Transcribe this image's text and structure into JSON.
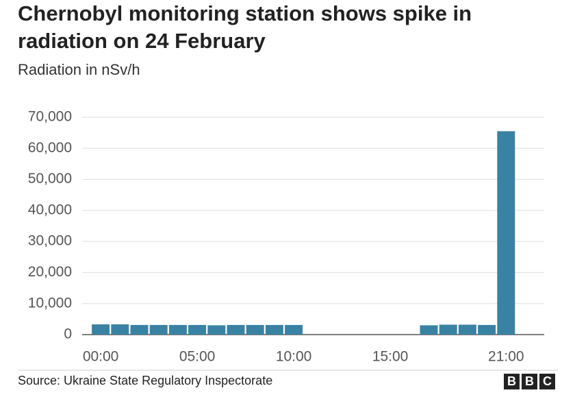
{
  "chart_data": {
    "type": "bar",
    "title": "Chernobyl monitoring station shows spike in radiation on 24 February",
    "subtitle": "Radiation in nSv/h",
    "categories": [
      "00:00",
      null,
      null,
      null,
      null,
      "05:00",
      null,
      null,
      null,
      null,
      "10:00",
      null,
      null,
      null,
      null,
      "15:00",
      null,
      null,
      null,
      null,
      null,
      "21:00"
    ],
    "values": [
      3300,
      3300,
      3100,
      3100,
      3100,
      3100,
      3000,
      3100,
      3100,
      3100,
      3100,
      null,
      null,
      null,
      null,
      null,
      null,
      3000,
      3200,
      3200,
      3100,
      65500
    ],
    "color": "#3a82a3",
    "ylim": [
      0,
      70000
    ],
    "yticks": [
      {
        "value": 0,
        "label": "0"
      },
      {
        "value": 10000,
        "label": "10,000"
      },
      {
        "value": 20000,
        "label": "20,000"
      },
      {
        "value": 30000,
        "label": "30,000"
      },
      {
        "value": 40000,
        "label": "40,000"
      },
      {
        "value": 50000,
        "label": "50,000"
      },
      {
        "value": 60000,
        "label": "60,000"
      },
      {
        "value": 70000,
        "label": "70,000"
      }
    ],
    "grid": true,
    "source": "Source: Ukraine State Regulatory Inspectorate",
    "logo_letters": [
      "B",
      "B",
      "C"
    ]
  }
}
